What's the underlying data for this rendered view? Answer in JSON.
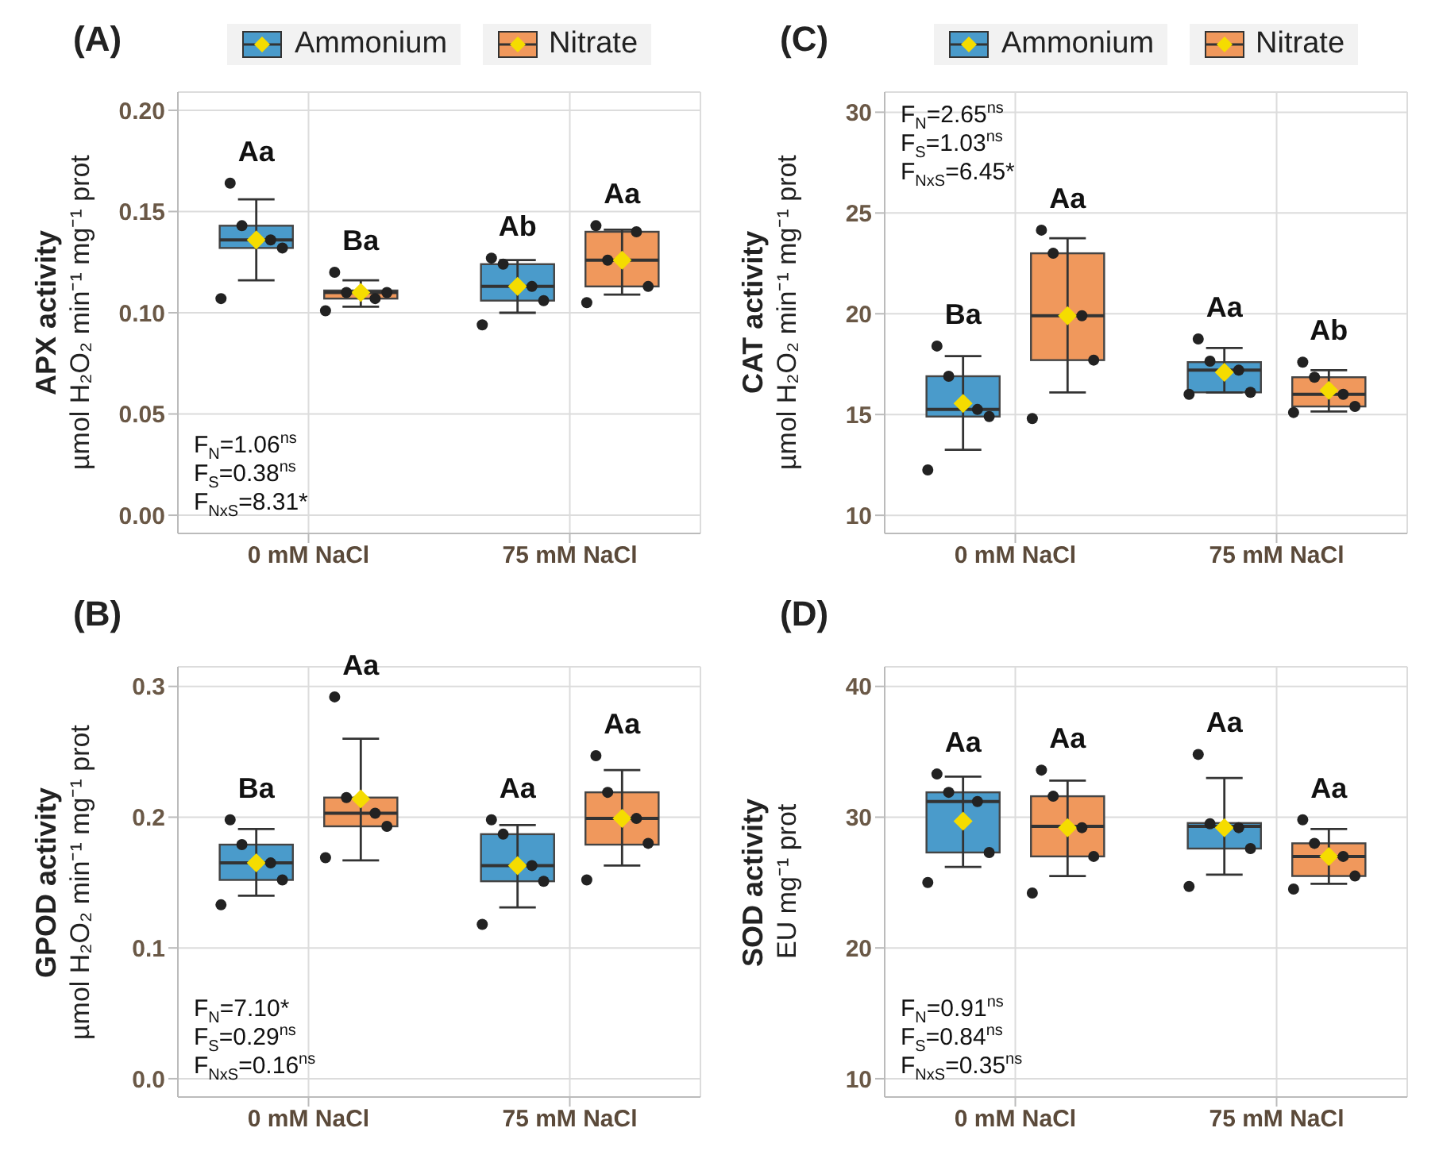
{
  "chart_data": [
    {
      "type": "box",
      "title": "(A)",
      "ylabel": "APX activity\nµmol H₂O₂ min⁻¹ mg⁻¹ prot",
      "categories": [
        "0 mM NaCl",
        "75 mM NaCl"
      ],
      "legend": "top",
      "grid": true,
      "marker": "circle",
      "ylim": [
        -0.009,
        0.209
      ],
      "yticks": [
        {
          "value": 0,
          "label": "0.00"
        },
        0.05,
        {
          "value": 0.1,
          "label": "0.10"
        },
        0.15,
        {
          "value": 0.2,
          "label": "0.20"
        }
      ],
      "series": [
        {
          "name": "Ammonium",
          "color": "#4a9bcb",
          "boxes": [
            {
              "low": 0.116,
              "q1": 0.132,
              "median": 0.136,
              "q3": 0.143,
              "high": 0.156,
              "mean": 0.136
            },
            {
              "low": 0.1,
              "q1": 0.106,
              "median": 0.113,
              "q3": 0.124,
              "high": 0.126,
              "mean": 0.113
            }
          ]
        },
        {
          "name": "Nitrate",
          "color": "#f0985c",
          "boxes": [
            {
              "low": 0.103,
              "q1": 0.107,
              "median": 0.11,
              "q3": 0.111,
              "high": 0.116,
              "mean": 0.11
            },
            {
              "low": 0.109,
              "q1": 0.113,
              "median": 0.126,
              "q3": 0.14,
              "high": 0.141,
              "mean": 0.126
            }
          ]
        },
        {
          "type": "scatter",
          "color": "#222222",
          "x": [
            "0 mM NaCl",
            "0 mM NaCl",
            "0 mM NaCl",
            "0 mM NaCl",
            "0 mM NaCl",
            "75 mM NaCl",
            "75 mM NaCl",
            "75 mM NaCl",
            "75 mM NaCl",
            "75 mM NaCl"
          ],
          "values": [
            0.164,
            0.143,
            0.136,
            0.132,
            0.107,
            0.127,
            0.124,
            0.113,
            0.106,
            0.094
          ]
        },
        {
          "type": "scatter",
          "color": "#222222",
          "x": [
            "0 mM NaCl",
            "0 mM NaCl",
            "0 mM NaCl",
            "0 mM NaCl",
            "0 mM NaCl",
            "75 mM NaCl",
            "75 mM NaCl",
            "75 mM NaCl",
            "75 mM NaCl",
            "75 mM NaCl"
          ],
          "values": [
            0.12,
            0.11,
            0.107,
            0.11,
            0.101,
            0.143,
            0.126,
            0.14,
            0.113,
            0.105
          ]
        }
      ],
      "annotations": [
        "Aa",
        "Ba",
        "Ab",
        "Aa",
        "F$_{N}$=1.06$^{ns}$\nF$_{S}$=0.38$^{ns}$\nF$_{NxS}$=8.31*"
      ]
    },
    {
      "type": "box",
      "title": "(C)",
      "ylabel": "CAT activity\nµmol H₂O₂ min⁻¹ mg⁻¹ prot",
      "categories": [
        "0 mM NaCl",
        "75 mM NaCl"
      ],
      "legend": "top",
      "grid": true,
      "marker": "circle",
      "ylim": [
        9.1,
        31
      ],
      "yticks": [
        10,
        15,
        20,
        25,
        30
      ],
      "series": [
        {
          "name": "Ammonium",
          "color": "#4a9bcb",
          "boxes": [
            {
              "low": 13.25,
              "q1": 14.9,
              "median": 15.25,
              "q3": 16.9,
              "high": 17.9,
              "mean": 15.55
            },
            {
              "low": 16.1,
              "q1": 16.1,
              "median": 17.2,
              "q3": 17.6,
              "high": 18.3,
              "mean": 17.1
            }
          ]
        },
        {
          "name": "Nitrate",
          "color": "#f0985c",
          "boxes": [
            {
              "low": 16.1,
              "q1": 17.7,
              "median": 19.9,
              "q3": 23.0,
              "high": 23.75,
              "mean": 19.9
            },
            {
              "low": 15.15,
              "q1": 15.4,
              "median": 16.0,
              "q3": 16.85,
              "high": 17.2,
              "mean": 16.2
            }
          ]
        },
        {
          "type": "scatter",
          "color": "#222222",
          "x": [
            "0 mM NaCl",
            "0 mM NaCl",
            "0 mM NaCl",
            "0 mM NaCl",
            "0 mM NaCl",
            "75 mM NaCl",
            "75 mM NaCl",
            "75 mM NaCl",
            "75 mM NaCl",
            "75 mM NaCl"
          ],
          "values": [
            18.4,
            16.9,
            15.25,
            14.9,
            12.25,
            18.75,
            17.65,
            17.2,
            16.1,
            16.0
          ]
        },
        {
          "type": "scatter",
          "color": "#222222",
          "x": [
            "0 mM NaCl",
            "0 mM NaCl",
            "0 mM NaCl",
            "0 mM NaCl",
            "0 mM NaCl",
            "75 mM NaCl",
            "75 mM NaCl",
            "75 mM NaCl",
            "75 mM NaCl",
            "75 mM NaCl"
          ],
          "values": [
            24.15,
            23.0,
            19.9,
            17.7,
            14.8,
            17.6,
            16.85,
            16.0,
            15.4,
            15.1
          ]
        }
      ],
      "annotations": [
        "Ba",
        "Aa",
        "Aa",
        "Ab",
        "F$_{N}$=2.65$^{ns}$\nF$_{S}$=1.03$^{ns}$\nF$_{NxS}$=6.45*"
      ]
    },
    {
      "type": "box",
      "title": "(B)",
      "ylabel": "GPOD activity\nµmol H₂O₂ min⁻¹ mg⁻¹ prot",
      "categories": [
        "0 mM NaCl",
        "75 mM NaCl"
      ],
      "grid": true,
      "marker": "circle",
      "ylim": [
        -0.014,
        0.315
      ],
      "yticks": [
        {
          "value": 0,
          "label": "0.0"
        },
        0.1,
        0.2,
        0.3
      ],
      "series": [
        {
          "color": "#4a9bcb",
          "boxes": [
            {
              "low": 0.14,
              "q1": 0.152,
              "median": 0.165,
              "q3": 0.179,
              "high": 0.191,
              "mean": 0.165
            },
            {
              "low": 0.131,
              "q1": 0.151,
              "median": 0.163,
              "q3": 0.187,
              "high": 0.194,
              "mean": 0.163
            }
          ]
        },
        {
          "color": "#f0985c",
          "boxes": [
            {
              "low": 0.167,
              "q1": 0.193,
              "median": 0.203,
              "q3": 0.215,
              "high": 0.26,
              "mean": 0.214
            },
            {
              "low": 0.163,
              "q1": 0.179,
              "median": 0.199,
              "q3": 0.219,
              "high": 0.236,
              "mean": 0.199
            }
          ]
        },
        {
          "type": "scatter",
          "color": "#222222",
          "x": [
            "0 mM NaCl",
            "0 mM NaCl",
            "0 mM NaCl",
            "0 mM NaCl",
            "0 mM NaCl",
            "75 mM NaCl",
            "75 mM NaCl",
            "75 mM NaCl",
            "75 mM NaCl",
            "75 mM NaCl"
          ],
          "values": [
            0.198,
            0.179,
            0.165,
            0.152,
            0.133,
            0.198,
            0.187,
            0.163,
            0.151,
            0.118
          ]
        },
        {
          "type": "scatter",
          "color": "#222222",
          "x": [
            "0 mM NaCl",
            "0 mM NaCl",
            "0 mM NaCl",
            "0 mM NaCl",
            "0 mM NaCl",
            "75 mM NaCl",
            "75 mM NaCl",
            "75 mM NaCl",
            "75 mM NaCl",
            "75 mM NaCl"
          ],
          "values": [
            0.292,
            0.215,
            0.203,
            0.193,
            0.169,
            0.247,
            0.219,
            0.199,
            0.18,
            0.152
          ]
        }
      ],
      "annotations": [
        "Ba",
        "Aa",
        "Aa",
        "Aa",
        "F$_{N}$=7.10*\nF$_{S}$=0.29$^{ns}$\nF$_{NxS}$=0.16$^{ns}$"
      ]
    },
    {
      "type": "box",
      "title": "(D)",
      "ylabel": "SOD activity\nEU mg⁻¹ prot",
      "categories": [
        "0 mM NaCl",
        "75 mM NaCl"
      ],
      "grid": true,
      "marker": "circle",
      "ylim": [
        8.6,
        41.5
      ],
      "yticks": [
        10,
        20,
        30,
        40
      ],
      "series": [
        {
          "color": "#4a9bcb",
          "boxes": [
            {
              "low": 26.2,
              "q1": 27.3,
              "median": 31.2,
              "q3": 31.9,
              "high": 33.1,
              "mean": 29.7
            },
            {
              "low": 25.6,
              "q1": 27.6,
              "median": 29.3,
              "q3": 29.55,
              "high": 33.0,
              "mean": 29.2
            }
          ]
        },
        {
          "color": "#f0985c",
          "boxes": [
            {
              "low": 25.5,
              "q1": 27.0,
              "median": 29.3,
              "q3": 31.6,
              "high": 32.8,
              "mean": 29.2
            },
            {
              "low": 24.9,
              "q1": 25.5,
              "median": 27.0,
              "q3": 28.0,
              "high": 29.1,
              "mean": 27.0
            }
          ]
        },
        {
          "type": "scatter",
          "color": "#222222",
          "x": [
            "0 mM NaCl",
            "0 mM NaCl",
            "0 mM NaCl",
            "0 mM NaCl",
            "0 mM NaCl",
            "75 mM NaCl",
            "75 mM NaCl",
            "75 mM NaCl",
            "75 mM NaCl",
            "75 mM NaCl"
          ],
          "values": [
            33.3,
            31.9,
            31.2,
            27.3,
            25.0,
            34.8,
            29.5,
            29.2,
            27.6,
            24.7
          ]
        },
        {
          "type": "scatter",
          "color": "#222222",
          "x": [
            "0 mM NaCl",
            "0 mM NaCl",
            "0 mM NaCl",
            "0 mM NaCl",
            "0 mM NaCl",
            "75 mM NaCl",
            "75 mM NaCl",
            "75 mM NaCl",
            "75 mM NaCl",
            "75 mM NaCl"
          ],
          "values": [
            33.6,
            31.6,
            29.2,
            27.0,
            24.2,
            29.8,
            28.0,
            27.0,
            25.5,
            24.5
          ]
        }
      ],
      "annotations": [
        "Aa",
        "Aa",
        "Aa",
        "Aa",
        "F$_{N}$=0.91$^{ns}$\nF$_{S}$=0.84$^{ns}$\nF$_{NxS}$=0.35$^{ns}$"
      ]
    }
  ]
}
